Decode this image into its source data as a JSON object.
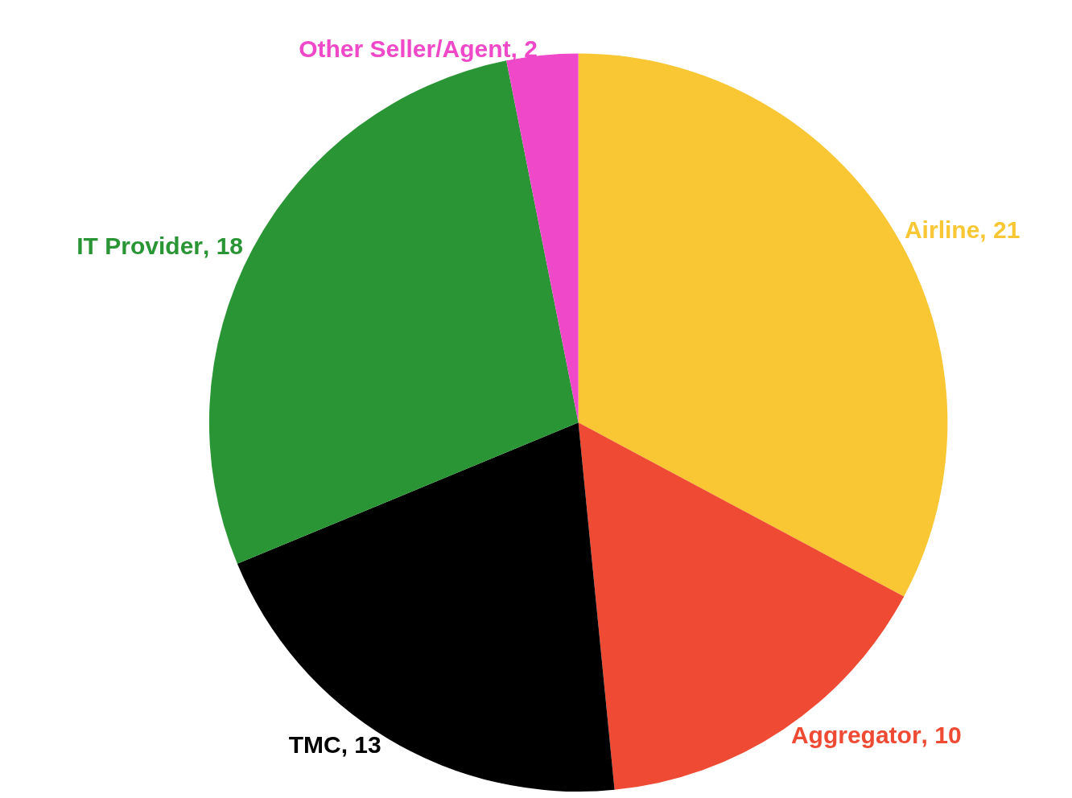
{
  "chart_data": {
    "type": "pie",
    "categories": [
      "Airline",
      "Aggregator",
      "TMC",
      "IT Provider",
      "Other Seller/Agent"
    ],
    "values": [
      21,
      10,
      13,
      18,
      2
    ],
    "colors": [
      "#f8c733",
      "#ef4a33",
      "#000000",
      "#2a9535",
      "#ef48c8"
    ],
    "value_labels": [
      ", 21",
      ", 10",
      ", 13",
      ", 18",
      ", 2"
    ]
  }
}
